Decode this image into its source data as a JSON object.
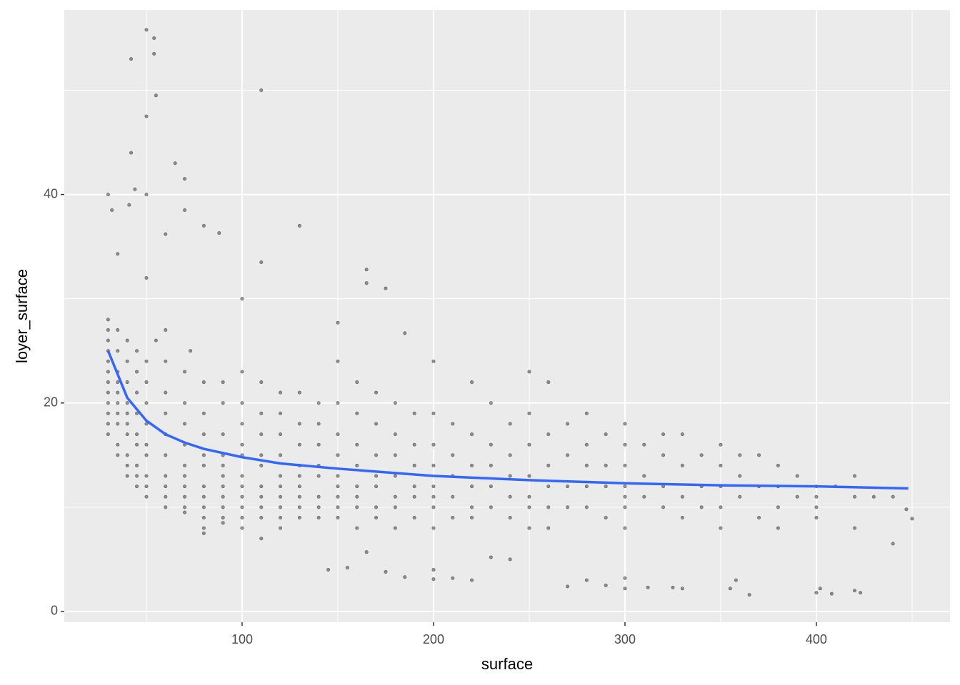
{
  "chart_data": {
    "type": "scatter",
    "x_label": "surface",
    "y_label": "loyer_surface",
    "xlim": [
      7.1,
      469.8
    ],
    "ylim": [
      -1.03,
      57.7
    ],
    "xticks": [
      100,
      200,
      300,
      400
    ],
    "yticks": [
      0,
      20,
      40
    ],
    "xminor": [
      50,
      150,
      250,
      350,
      450
    ],
    "yminor": [
      10,
      30,
      50
    ],
    "grid": true,
    "color": "#000000",
    "x": [
      42,
      50,
      54,
      54,
      55,
      50,
      42,
      44,
      50,
      30,
      65,
      70,
      70,
      80,
      88,
      110,
      130,
      32,
      41,
      60,
      165,
      165,
      175,
      110,
      50,
      35,
      73,
      100,
      150,
      185,
      60,
      55,
      145,
      155,
      165,
      175,
      185,
      200,
      200,
      210,
      220,
      230,
      240,
      270,
      280,
      290,
      300,
      300,
      312,
      325,
      330,
      355,
      358,
      365,
      400,
      402,
      408,
      420,
      423,
      440,
      447,
      450,
      30,
      30,
      30,
      30,
      30,
      30,
      30,
      30,
      30,
      30,
      30,
      30,
      35,
      35,
      35,
      35,
      35,
      35,
      35,
      35,
      35,
      35,
      40,
      40,
      40,
      40,
      40,
      40,
      40,
      40,
      40,
      40,
      45,
      45,
      45,
      45,
      45,
      45,
      45,
      45,
      45,
      50,
      50,
      50,
      50,
      50,
      50,
      50,
      50,
      50,
      60,
      60,
      60,
      60,
      60,
      60,
      60,
      60,
      60,
      70,
      70,
      70,
      70,
      70,
      70,
      70,
      70,
      70,
      70,
      80,
      80,
      80,
      80,
      80,
      80,
      80,
      80,
      80,
      80,
      80,
      90,
      90,
      90,
      90,
      90,
      90,
      90,
      90,
      90,
      90,
      90,
      100,
      100,
      100,
      100,
      100,
      100,
      100,
      100,
      100,
      100,
      100,
      110,
      110,
      110,
      110,
      110,
      110,
      110,
      110,
      110,
      110,
      120,
      120,
      120,
      120,
      120,
      120,
      120,
      120,
      120,
      120,
      130,
      130,
      130,
      130,
      130,
      130,
      130,
      130,
      130,
      140,
      140,
      140,
      140,
      140,
      140,
      140,
      140,
      150,
      150,
      150,
      150,
      150,
      150,
      150,
      150,
      150,
      160,
      160,
      160,
      160,
      160,
      160,
      160,
      160,
      170,
      170,
      170,
      170,
      170,
      170,
      170,
      180,
      180,
      180,
      180,
      180,
      180,
      180,
      190,
      190,
      190,
      190,
      190,
      190,
      200,
      200,
      200,
      200,
      200,
      200,
      200,
      200,
      210,
      210,
      210,
      210,
      210,
      220,
      220,
      220,
      220,
      220,
      220,
      230,
      230,
      230,
      230,
      230,
      240,
      240,
      240,
      240,
      240,
      250,
      250,
      250,
      250,
      250,
      250,
      250,
      260,
      260,
      260,
      260,
      260,
      260,
      270,
      270,
      270,
      270,
      280,
      280,
      280,
      280,
      280,
      290,
      290,
      290,
      290,
      300,
      300,
      300,
      300,
      300,
      300,
      300,
      310,
      310,
      310,
      320,
      320,
      320,
      320,
      330,
      330,
      330,
      330,
      340,
      340,
      340,
      350,
      350,
      350,
      350,
      350,
      360,
      360,
      360,
      370,
      370,
      370,
      380,
      380,
      380,
      380,
      390,
      390,
      400,
      400,
      400,
      400,
      410,
      420,
      420,
      420,
      430,
      440
    ],
    "values": [
      53,
      55.8,
      55,
      53.5,
      49.5,
      47.5,
      44,
      40.5,
      40,
      40,
      43,
      41.5,
      38.5,
      37,
      36.3,
      50,
      37,
      38.5,
      39,
      36.2,
      32.8,
      31.5,
      31,
      33.5,
      32,
      34.3,
      25,
      30,
      27.7,
      26.7,
      27,
      26,
      4,
      4.2,
      5.7,
      3.8,
      3.3,
      3.1,
      4,
      3.2,
      3,
      5.2,
      5,
      2.4,
      3,
      2.5,
      2.2,
      3.2,
      2.3,
      2.3,
      2.2,
      2.2,
      3,
      1.6,
      1.8,
      2.2,
      1.7,
      2,
      1.8,
      6.5,
      9.8,
      8.9,
      28,
      26,
      24,
      22,
      21,
      20,
      19,
      18,
      17,
      23,
      25,
      27,
      27,
      25,
      23,
      21,
      19,
      18,
      16,
      15,
      20,
      22,
      26,
      24,
      22,
      20,
      18,
      17,
      15,
      14,
      13,
      19,
      25,
      23,
      21,
      19,
      17,
      16,
      14,
      13,
      12,
      24,
      22,
      20,
      18,
      16,
      15,
      13,
      12,
      11,
      24,
      21,
      19,
      17,
      15,
      13,
      12,
      11,
      10,
      23,
      20,
      18,
      16,
      14,
      13,
      12,
      11,
      10,
      9.5,
      22,
      19,
      17,
      15,
      14,
      12,
      11,
      10,
      9,
      8,
      7.5,
      22,
      20,
      17,
      15,
      14,
      13,
      12,
      11,
      10,
      9,
      8.5,
      23,
      20,
      18,
      16,
      15,
      13,
      12,
      11,
      10,
      9,
      8,
      22,
      19,
      17,
      15,
      14,
      12,
      11,
      10,
      9,
      7,
      21,
      19,
      17,
      15,
      13,
      12,
      11,
      10,
      9,
      8,
      21,
      18,
      16,
      14,
      13,
      12,
      11,
      10,
      9,
      20,
      18,
      16,
      14,
      13,
      11,
      10,
      9,
      24,
      20,
      17,
      15,
      13,
      12,
      11,
      10,
      9,
      22,
      19,
      16,
      14,
      12,
      11,
      10,
      8,
      21,
      18,
      15,
      13,
      12,
      10,
      9,
      20,
      17,
      15,
      13,
      11,
      10,
      8,
      19,
      16,
      14,
      12,
      11,
      9,
      24,
      19,
      16,
      14,
      12,
      11,
      10,
      8,
      18,
      15,
      13,
      11,
      9,
      22,
      17,
      14,
      12,
      10,
      9,
      20,
      16,
      14,
      12,
      10,
      18,
      15,
      13,
      11,
      9,
      23,
      19,
      16,
      13,
      11,
      10,
      8,
      22,
      17,
      14,
      12,
      10,
      8,
      18,
      15,
      12,
      10,
      19,
      16,
      14,
      12,
      10,
      17,
      14,
      12,
      9,
      18,
      16,
      14,
      12,
      11,
      10,
      8,
      16,
      13,
      11,
      17,
      15,
      12,
      10,
      17,
      14,
      11,
      9,
      15,
      12,
      10,
      16,
      14,
      12,
      10,
      8,
      15,
      13,
      11,
      15,
      12,
      9,
      14,
      12,
      10,
      8,
      13,
      11,
      12,
      11,
      10,
      9,
      12,
      13,
      11,
      8,
      11,
      11
    ],
    "smooth": {
      "color": "#3366ff",
      "x": [
        30,
        40,
        50,
        60,
        70,
        80,
        100,
        120,
        150,
        200,
        250,
        300,
        350,
        400,
        448
      ],
      "values": [
        25,
        20.5,
        18.3,
        17,
        16.2,
        15.6,
        14.8,
        14.2,
        13.7,
        13.0,
        12.6,
        12.3,
        12.1,
        12.0,
        11.8
      ]
    }
  }
}
